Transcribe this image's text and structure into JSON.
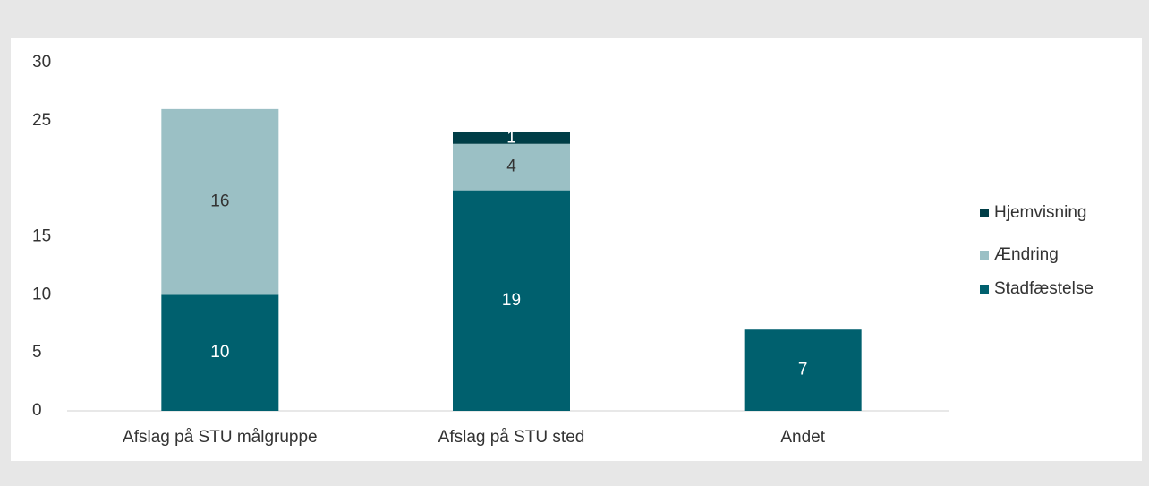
{
  "chart_data": {
    "type": "bar",
    "stacked": true,
    "categories": [
      "Afslag på STU målgruppe",
      "Afslag på STU sted",
      "Andet"
    ],
    "series": [
      {
        "name": "Stadfæstelse",
        "color": "#00606e",
        "values": [
          10,
          19,
          7
        ]
      },
      {
        "name": "Ændring",
        "color": "#9bc0c5",
        "values": [
          16,
          4,
          null
        ]
      },
      {
        "name": "Hjemvisning",
        "color": "#003e47",
        "values": [
          null,
          1,
          null
        ]
      }
    ],
    "ylim": [
      0,
      30
    ],
    "yticks": [
      0,
      5,
      10,
      15,
      25,
      30
    ],
    "grid": false,
    "legend": "right"
  }
}
